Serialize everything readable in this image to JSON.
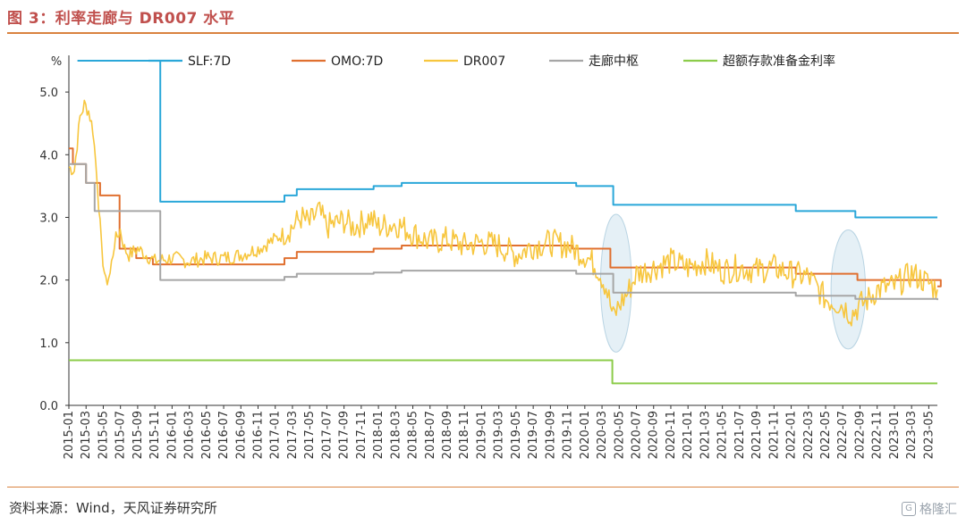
{
  "header": {
    "title": "图 3：利率走廊与 DR007 水平"
  },
  "footer": {
    "source": "资料来源：Wind，天风证券研究所",
    "watermark": "格隆汇"
  },
  "chart_data": {
    "type": "line",
    "ylabel": "%",
    "ylim": [
      0,
      5.5
    ],
    "yticks": [
      "0.0",
      "1.0",
      "2.0",
      "3.0",
      "4.0",
      "5.0"
    ],
    "x_tick_labels": [
      "2015-01",
      "2015-03",
      "2015-05",
      "2015-07",
      "2015-09",
      "2015-11",
      "2016-01",
      "2016-03",
      "2016-05",
      "2016-07",
      "2016-09",
      "2016-11",
      "2017-01",
      "2017-03",
      "2017-05",
      "2017-07",
      "2017-09",
      "2017-11",
      "2018-01",
      "2018-03",
      "2018-05",
      "2018-07",
      "2018-09",
      "2018-11",
      "2019-01",
      "2019-03",
      "2019-05",
      "2019-07",
      "2019-09",
      "2019-11",
      "2020-01",
      "2020-03",
      "2020-05",
      "2020-07",
      "2020-09",
      "2020-11",
      "2021-01",
      "2021-03",
      "2021-05",
      "2021-07",
      "2021-09",
      "2021-11",
      "2022-01",
      "2022-03",
      "2022-05",
      "2022-07",
      "2022-09",
      "2022-11",
      "2023-01",
      "2023-03",
      "2023-05"
    ],
    "x_range": [
      "2015-01",
      "2023-06"
    ],
    "grid": false,
    "legend_position": "top",
    "series": [
      {
        "name": "SLF:7D",
        "color": "#2aa7d9",
        "step": true,
        "points": [
          [
            "2015-02",
            5.5
          ],
          [
            "2015-11-20",
            3.25
          ],
          [
            "2017-02-03",
            3.35
          ],
          [
            "2017-03-16",
            3.45
          ],
          [
            "2017-12-14",
            3.5
          ],
          [
            "2018-03-22",
            3.55
          ],
          [
            "2019-12-01",
            3.5
          ],
          [
            "2020-04-10",
            3.2
          ],
          [
            "2022-01-17",
            3.1
          ],
          [
            "2022-08-15",
            3.0
          ],
          [
            "2023-06",
            3.0
          ]
        ]
      },
      {
        "name": "OMO:7D",
        "color": "#e07030",
        "step": true,
        "points": [
          [
            "2015-01",
            4.1
          ],
          [
            "2015-01-15",
            3.85
          ],
          [
            "2015-03-01",
            3.55
          ],
          [
            "2015-04-20",
            3.35
          ],
          [
            "2015-06-28",
            2.5
          ],
          [
            "2015-08-26",
            2.35
          ],
          [
            "2015-10-24",
            2.25
          ],
          [
            "2017-02-03",
            2.35
          ],
          [
            "2017-03-16",
            2.45
          ],
          [
            "2017-12-14",
            2.5
          ],
          [
            "2018-03-22",
            2.55
          ],
          [
            "2019-11-18",
            2.5
          ],
          [
            "2020-03-30",
            2.2
          ],
          [
            "2022-01-17",
            2.1
          ],
          [
            "2022-08-22",
            2.0
          ],
          [
            "2023-06-13",
            1.9
          ],
          [
            "2023-06",
            1.9
          ]
        ]
      },
      {
        "name": "DR007",
        "color": "#f7c63e",
        "step": false,
        "points": [
          [
            "2015-01",
            3.8
          ],
          [
            "2015-01-20",
            3.75
          ],
          [
            "2015-02-10",
            4.6
          ],
          [
            "2015-02-25",
            4.8
          ],
          [
            "2015-03-10",
            4.7
          ],
          [
            "2015-03-25",
            4.4
          ],
          [
            "2015-04-10",
            3.6
          ],
          [
            "2015-04-25",
            2.5
          ],
          [
            "2015-05-10",
            1.95
          ],
          [
            "2015-05-25",
            2.1
          ],
          [
            "2015-06-10",
            2.6
          ],
          [
            "2015-06-30",
            2.8
          ],
          [
            "2015-07-15",
            2.5
          ],
          [
            "2015-08-01",
            2.4
          ],
          [
            "2015-09-01",
            2.5
          ],
          [
            "2015-10-01",
            2.4
          ],
          [
            "2015-11-01",
            2.3
          ],
          [
            "2016-01-01",
            2.35
          ],
          [
            "2016-03-01",
            2.3
          ],
          [
            "2016-05-01",
            2.35
          ],
          [
            "2016-07-01",
            2.35
          ],
          [
            "2016-09-01",
            2.4
          ],
          [
            "2016-11-01",
            2.5
          ],
          [
            "2017-01-01",
            2.65
          ],
          [
            "2017-02-01",
            2.75
          ],
          [
            "2017-03-01",
            2.85
          ],
          [
            "2017-04-01",
            3.0
          ],
          [
            "2017-05-01",
            2.9
          ],
          [
            "2017-06-01",
            3.1
          ],
          [
            "2017-07-01",
            2.85
          ],
          [
            "2017-08-01",
            2.9
          ],
          [
            "2017-09-01",
            2.95
          ],
          [
            "2017-10-01",
            2.85
          ],
          [
            "2017-11-01",
            2.9
          ],
          [
            "2017-12-01",
            3.0
          ],
          [
            "2018-01-01",
            2.85
          ],
          [
            "2018-03-01",
            2.9
          ],
          [
            "2018-05-01",
            2.75
          ],
          [
            "2018-07-01",
            2.6
          ],
          [
            "2018-09-01",
            2.65
          ],
          [
            "2018-11-01",
            2.55
          ],
          [
            "2019-01-01",
            2.6
          ],
          [
            "2019-03-01",
            2.55
          ],
          [
            "2019-05-01",
            2.4
          ],
          [
            "2019-07-01",
            2.55
          ],
          [
            "2019-09-01",
            2.6
          ],
          [
            "2019-11-01",
            2.55
          ],
          [
            "2020-01-01",
            2.4
          ],
          [
            "2020-02-15",
            2.2
          ],
          [
            "2020-03-15",
            1.9
          ],
          [
            "2020-04-10",
            1.4
          ],
          [
            "2020-05-01",
            1.6
          ],
          [
            "2020-06-01",
            1.8
          ],
          [
            "2020-07-01",
            2.1
          ],
          [
            "2020-09-01",
            2.2
          ],
          [
            "2020-11-01",
            2.3
          ],
          [
            "2021-01-01",
            2.2
          ],
          [
            "2021-03-01",
            2.3
          ],
          [
            "2021-05-01",
            2.15
          ],
          [
            "2021-07-01",
            2.2
          ],
          [
            "2021-09-01",
            2.15
          ],
          [
            "2021-11-01",
            2.2
          ],
          [
            "2022-01-01",
            2.1
          ],
          [
            "2022-03-01",
            2.05
          ],
          [
            "2022-05-01",
            1.7
          ],
          [
            "2022-07-01",
            1.6
          ],
          [
            "2022-08-01",
            1.45
          ],
          [
            "2022-09-01",
            1.6
          ],
          [
            "2022-10-01",
            1.7
          ],
          [
            "2022-11-01",
            1.85
          ],
          [
            "2023-01-01",
            1.9
          ],
          [
            "2023-03-01",
            2.1
          ],
          [
            "2023-05-01",
            1.95
          ],
          [
            "2023-06",
            1.85
          ]
        ]
      },
      {
        "name": "走廊中枢",
        "color": "#a6a6a6",
        "step": true,
        "points": [
          [
            "2015-01",
            3.85
          ],
          [
            "2015-03-01",
            3.55
          ],
          [
            "2015-04-01",
            3.1
          ],
          [
            "2015-11-20",
            2.0
          ],
          [
            "2017-02-03",
            2.05
          ],
          [
            "2017-03-16",
            2.1
          ],
          [
            "2017-12-14",
            2.12
          ],
          [
            "2018-03-22",
            2.15
          ],
          [
            "2019-12-01",
            2.1
          ],
          [
            "2020-04-10",
            1.8
          ],
          [
            "2022-01-17",
            1.75
          ],
          [
            "2022-08-15",
            1.7
          ],
          [
            "2023-06",
            1.68
          ]
        ]
      },
      {
        "name": "超额存款准备金利率",
        "color": "#8ccc4a",
        "step": true,
        "points": [
          [
            "2015-01",
            0.72
          ],
          [
            "2020-04-07",
            0.35
          ],
          [
            "2023-06",
            0.35
          ]
        ]
      }
    ],
    "highlights": [
      {
        "center_x": "2020-04-20",
        "center_y": 1.95,
        "rx_months": 1.8,
        "ry": 1.1
      },
      {
        "center_x": "2022-07-20",
        "center_y": 1.85,
        "rx_months": 2.0,
        "ry": 0.95
      }
    ]
  }
}
